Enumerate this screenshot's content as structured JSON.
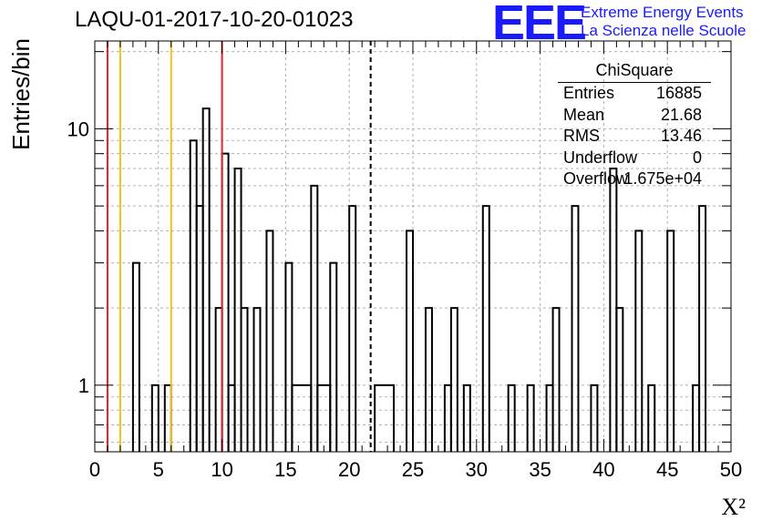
{
  "header": {
    "title": "LAQU-01-2017-10-20-01023",
    "logo_text": "EEE",
    "logo_line1": "Extreme Energy Events",
    "logo_line2": "La Scienza nelle Scuole",
    "logo_color": "#1a1aff"
  },
  "stats_box": {
    "title": "ChiSquare",
    "rows": [
      {
        "key": "Entries",
        "value": "16885"
      },
      {
        "key": "Mean",
        "value": "21.68"
      },
      {
        "key": "RMS",
        "value": "13.46"
      },
      {
        "key": "Underflow",
        "value": "0"
      },
      {
        "key": "Overflow",
        "value": "1.675e+04"
      }
    ]
  },
  "chart_data": {
    "type": "histogram",
    "xlabel": "X²",
    "ylabel": "Entries/bin",
    "xlim": [
      0,
      50
    ],
    "ylim": [
      0.55,
      22
    ],
    "y_scale": "log",
    "grid": true,
    "bin_width": 1,
    "x_ticks": [
      0,
      5,
      10,
      15,
      20,
      25,
      30,
      35,
      40,
      45,
      50
    ],
    "y_tick_labels": [
      {
        "value": 1,
        "label": "1"
      },
      {
        "value": 10,
        "label": "10"
      }
    ],
    "bins": [
      {
        "x0": 3,
        "x1": 3.5,
        "count": 3
      },
      {
        "x0": 4.5,
        "x1": 5,
        "count": 1
      },
      {
        "x0": 5.5,
        "x1": 6,
        "count": 1
      },
      {
        "x0": 7.5,
        "x1": 8,
        "count": 9
      },
      {
        "x0": 8,
        "x1": 8.5,
        "count": 5
      },
      {
        "x0": 8.5,
        "x1": 9,
        "count": 12
      },
      {
        "x0": 9.5,
        "x1": 10,
        "count": 2
      },
      {
        "x0": 10,
        "x1": 10.5,
        "count": 8
      },
      {
        "x0": 10.5,
        "x1": 11,
        "count": 1
      },
      {
        "x0": 11,
        "x1": 11.5,
        "count": 7
      },
      {
        "x0": 11.5,
        "x1": 12,
        "count": 2
      },
      {
        "x0": 12.5,
        "x1": 13,
        "count": 2
      },
      {
        "x0": 13.5,
        "x1": 14,
        "count": 4
      },
      {
        "x0": 15,
        "x1": 15.5,
        "count": 3
      },
      {
        "x0": 15.5,
        "x1": 17,
        "count": 1
      },
      {
        "x0": 17,
        "x1": 17.5,
        "count": 6
      },
      {
        "x0": 17.5,
        "x1": 18.5,
        "count": 1
      },
      {
        "x0": 18.5,
        "x1": 19,
        "count": 3
      },
      {
        "x0": 20,
        "x1": 20.5,
        "count": 5
      },
      {
        "x0": 22,
        "x1": 23.5,
        "count": 1
      },
      {
        "x0": 24.5,
        "x1": 25,
        "count": 4
      },
      {
        "x0": 26,
        "x1": 26.5,
        "count": 2
      },
      {
        "x0": 27.5,
        "x1": 28,
        "count": 1
      },
      {
        "x0": 28,
        "x1": 28.5,
        "count": 2
      },
      {
        "x0": 29,
        "x1": 29.5,
        "count": 1
      },
      {
        "x0": 30.5,
        "x1": 31,
        "count": 5
      },
      {
        "x0": 32.5,
        "x1": 33,
        "count": 1
      },
      {
        "x0": 34,
        "x1": 34.5,
        "count": 1
      },
      {
        "x0": 35.5,
        "x1": 36,
        "count": 1
      },
      {
        "x0": 36,
        "x1": 36.5,
        "count": 2
      },
      {
        "x0": 37.5,
        "x1": 38,
        "count": 5
      },
      {
        "x0": 39,
        "x1": 39.5,
        "count": 1
      },
      {
        "x0": 40.5,
        "x1": 41,
        "count": 7
      },
      {
        "x0": 41,
        "x1": 41.5,
        "count": 2
      },
      {
        "x0": 42.5,
        "x1": 43,
        "count": 4
      },
      {
        "x0": 43.5,
        "x1": 44,
        "count": 1
      },
      {
        "x0": 45,
        "x1": 45.5,
        "count": 4
      },
      {
        "x0": 47,
        "x1": 47.5,
        "count": 1
      },
      {
        "x0": 47.5,
        "x1": 48,
        "count": 5
      }
    ],
    "vertical_lines": [
      {
        "x": 1,
        "color": "#e8202a",
        "style": "solid"
      },
      {
        "x": 2,
        "color": "#f0c419",
        "style": "solid"
      },
      {
        "x": 6,
        "color": "#f0c419",
        "style": "solid"
      },
      {
        "x": 10,
        "color": "#e8202a",
        "style": "solid"
      },
      {
        "x": 21.68,
        "color": "#000000",
        "style": "dashed"
      }
    ]
  }
}
